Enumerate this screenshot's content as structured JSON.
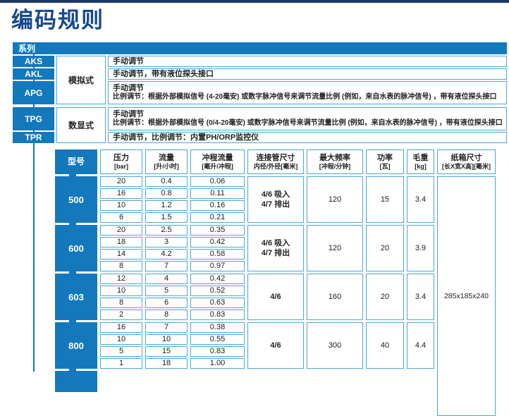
{
  "page": {
    "title": "编码规则"
  },
  "colors": {
    "accent_blue": "#1478bd",
    "border_blue": "#4da5d8",
    "title_navy": "#15498d",
    "topbar_navy": "#203a66"
  },
  "series_table": {
    "header": "系列",
    "groups": [
      {
        "type_label": "模拟式",
        "rows": [
          {
            "code": "AKS",
            "desc_lines": [
              "手动调节"
            ]
          },
          {
            "code": "AKL",
            "desc_lines": [
              "手动调节，带有液位探头接口"
            ]
          },
          {
            "code": "APG",
            "desc_lines": [
              "手动调节",
              "比例调节：根据外部模拟信号 (4-20毫安) 或数字脉冲信号来调节流量比例 (例如，来自水表的脉冲信号) ，带有液位探头接口"
            ]
          }
        ]
      },
      {
        "type_label": "数显式",
        "rows": [
          {
            "code": "TPG",
            "desc_lines": [
              "手动调节",
              "比例调节：根据外部模拟信号 (0/4-20毫安) 或数字脉冲信号来调节流量比例 (例如，来自水表的脉冲信号) ，带有液位探头接口"
            ]
          },
          {
            "code": "TPR",
            "desc_lines": [
              "手动调节，比例调节：内置PH/ORP监控仪"
            ]
          }
        ]
      }
    ]
  },
  "spec_table": {
    "columns": [
      {
        "label": "型号",
        "unit": ""
      },
      {
        "label": "压力",
        "unit": "[bar]"
      },
      {
        "label": "流量",
        "unit": "[升/小时]"
      },
      {
        "label": "冲程流量",
        "unit": "[毫升/冲程]"
      },
      {
        "label": "连接管尺寸",
        "unit": "内径/外径[毫米]"
      },
      {
        "label": "最大频率",
        "unit": "[冲程/分钟]"
      },
      {
        "label": "功率",
        "unit": "[瓦]"
      },
      {
        "label": "毛重",
        "unit": "[kg]"
      },
      {
        "label": "纸箱尺寸",
        "unit": "[长X宽X高][毫米]"
      }
    ],
    "models": [
      {
        "model": "500",
        "rows": [
          [
            "20",
            "0.4",
            "0.06"
          ],
          [
            "16",
            "0.8",
            "0.11"
          ],
          [
            "10",
            "1.2",
            "0.16"
          ],
          [
            "6",
            "1.5",
            "0.21"
          ]
        ],
        "pipe_lines": [
          "4/6 吸入",
          "4/7 排出"
        ],
        "max_freq": "120",
        "power": "15",
        "weight": "3.4"
      },
      {
        "model": "600",
        "rows": [
          [
            "20",
            "2.5",
            "0.35"
          ],
          [
            "18",
            "3",
            "0.42"
          ],
          [
            "14",
            "4.2",
            "0.58"
          ],
          [
            "8",
            "7",
            "0.97"
          ]
        ],
        "pipe_lines": [
          "4/6 吸入",
          "4/7 排出"
        ],
        "max_freq": "120",
        "power": "20",
        "weight": "3.9"
      },
      {
        "model": "603",
        "rows": [
          [
            "12",
            "4",
            "0.42"
          ],
          [
            "10",
            "5",
            "0.52"
          ],
          [
            "8",
            "6",
            "0.63"
          ],
          [
            "2",
            "8",
            "0.83"
          ]
        ],
        "pipe_lines": [
          "4/6"
        ],
        "max_freq": "160",
        "power": "20",
        "weight": "3.4"
      },
      {
        "model": "800",
        "rows": [
          [
            "16",
            "7",
            "0.38"
          ],
          [
            "10",
            "10",
            "0.55"
          ],
          [
            "5",
            "15",
            "0.83"
          ],
          [
            "1",
            "18",
            "1.00"
          ]
        ],
        "pipe_lines": [
          "4/6"
        ],
        "max_freq": "300",
        "power": "40",
        "weight": "4.4"
      }
    ],
    "carton_size": "285x185x240"
  }
}
